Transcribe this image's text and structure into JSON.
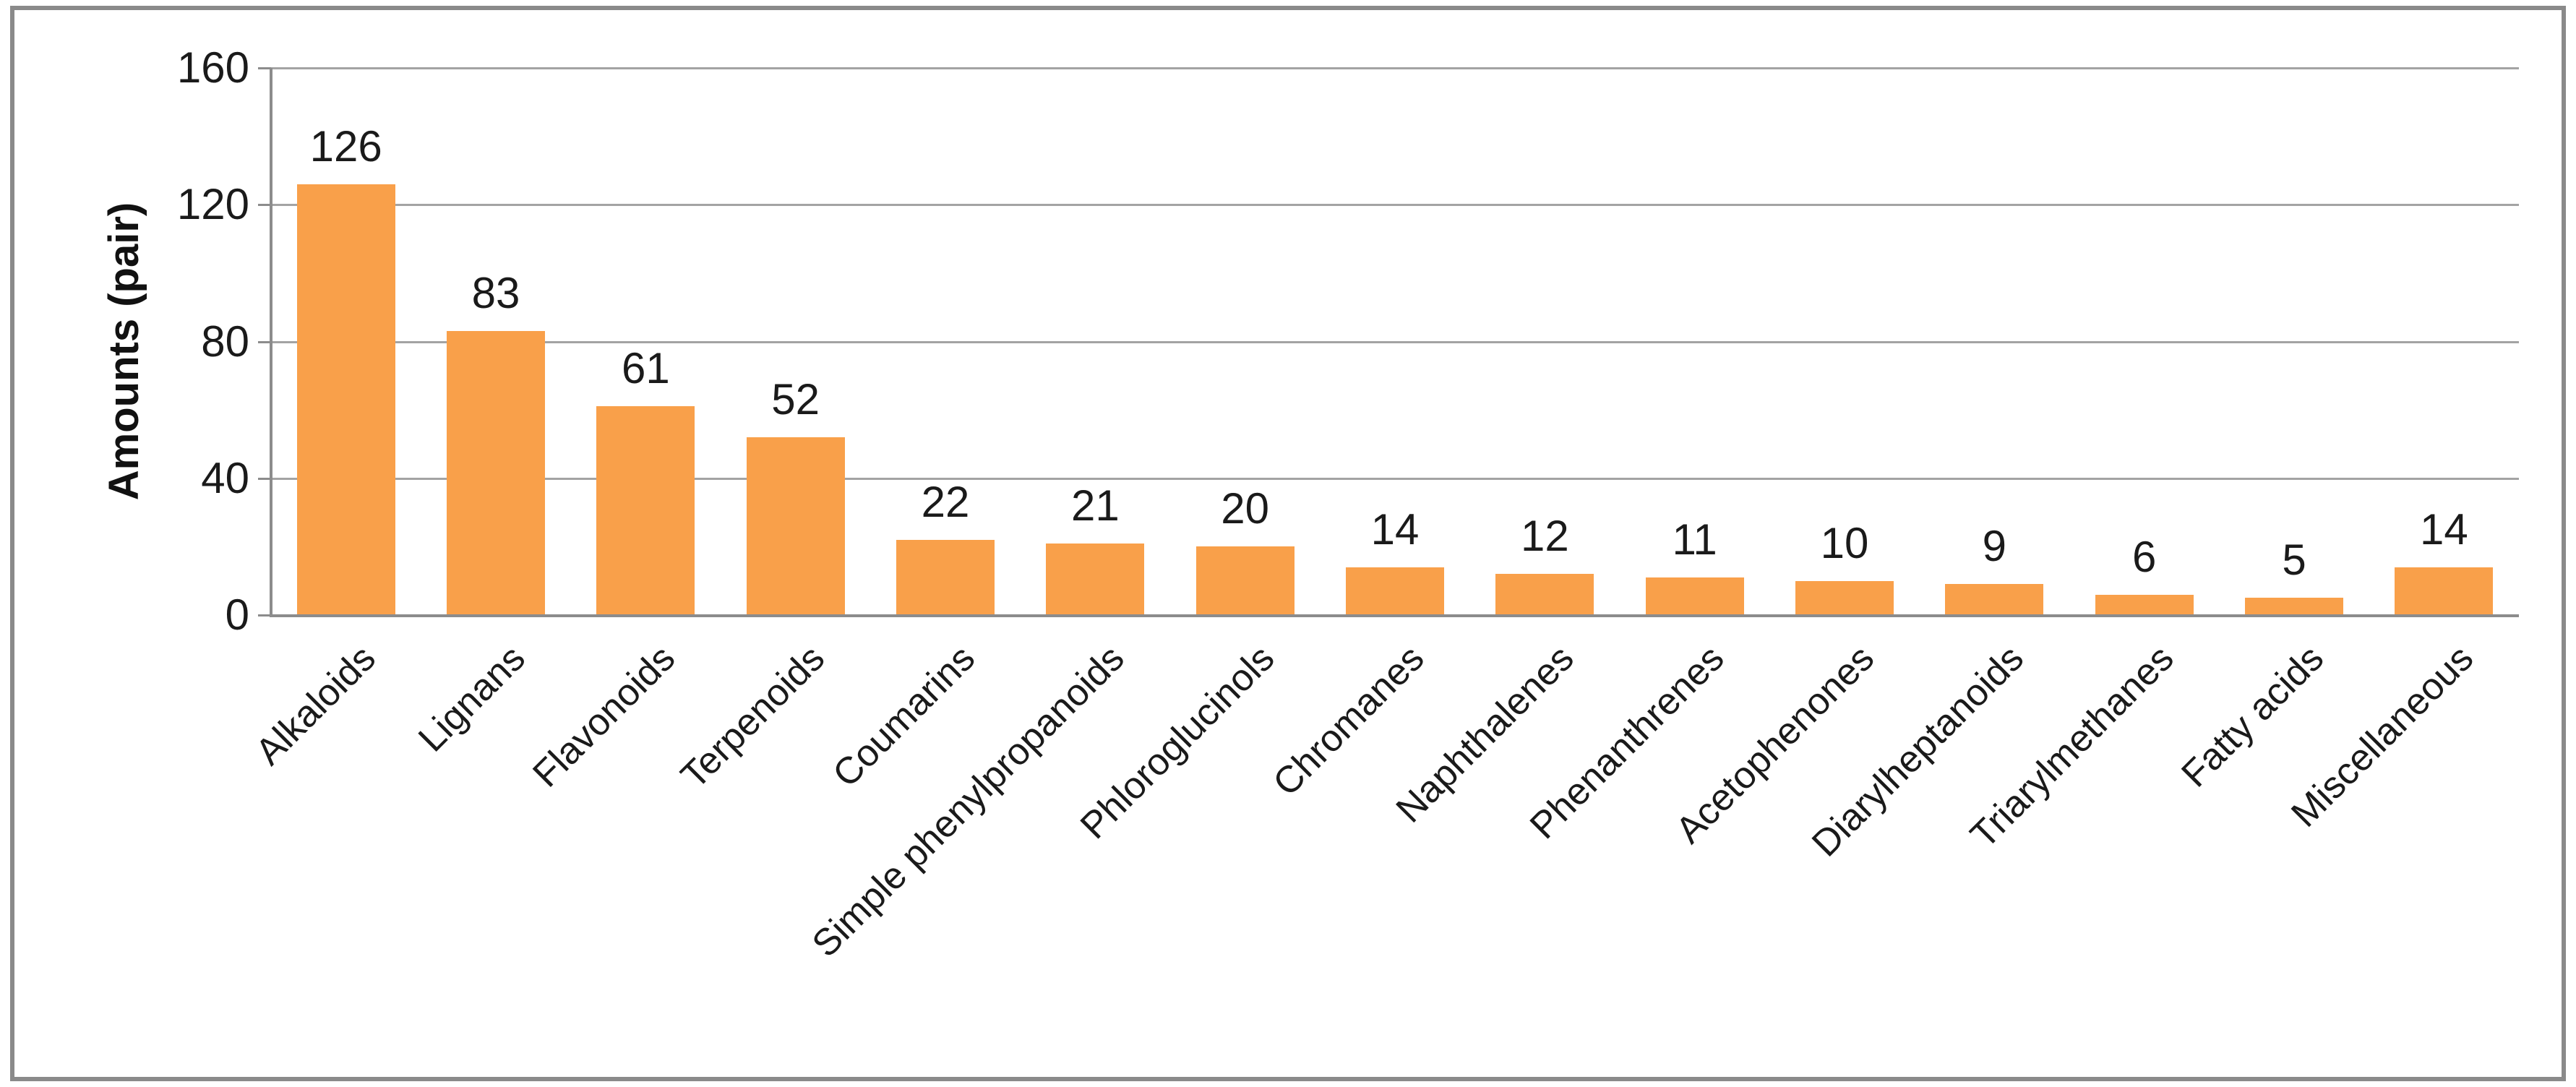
{
  "chart_data": {
    "type": "bar",
    "title": "",
    "categories": [
      "Alkaloids",
      "Lignans",
      "Flavonoids",
      "Terpenoids",
      "Coumarins",
      "Simple phenylpropanoids",
      "Phloroglucinols",
      "Chromanes",
      "Naphthalenes",
      "Phenanthrenes",
      "Acetophenones",
      "Diarylheptanoids",
      "Triarylmethanes",
      "Fatty acids",
      "Miscellaneous"
    ],
    "values": [
      126,
      83,
      61,
      52,
      22,
      21,
      20,
      14,
      12,
      11,
      10,
      9,
      6,
      5,
      14
    ],
    "data_labels": [
      126,
      83,
      61,
      52,
      22,
      21,
      20,
      14,
      12,
      11,
      10,
      9,
      6,
      5,
      14
    ],
    "xlabel": "",
    "ylabel": "Amounts (pair)",
    "yticks": [
      0,
      40,
      80,
      120,
      160
    ],
    "ylim": [
      0,
      160
    ],
    "grid": true,
    "legend_position": "none",
    "bar_color": "#f9a04a",
    "gridline_color": "#a3a3a3",
    "axis_color": "#8c8c8c",
    "text_color": "#1a1a1a",
    "frame_border_color": "#8a8a8a",
    "background_color": "#ffffff"
  }
}
